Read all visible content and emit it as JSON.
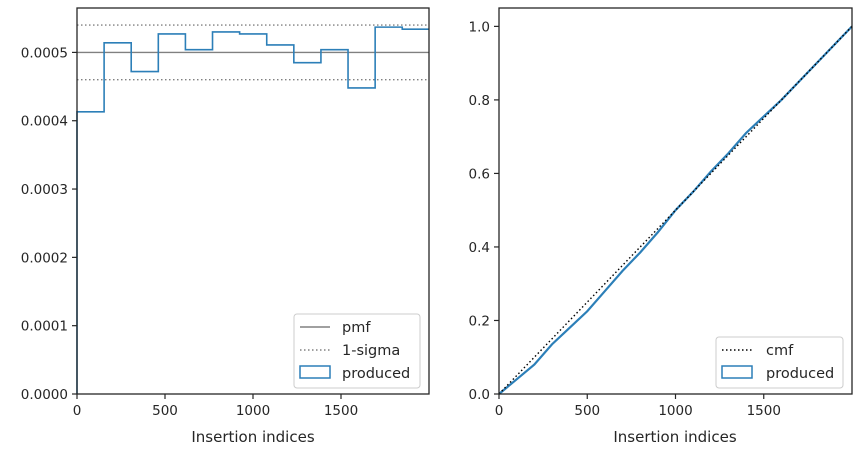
{
  "chart_data": [
    {
      "type": "step",
      "xlabel": "Insertion indices",
      "ylabel": "",
      "xlim": [
        0,
        2000
      ],
      "ylim": [
        0,
        0.000565
      ],
      "xticks": [
        0,
        500,
        1000,
        1500
      ],
      "xtick_labels": [
        "0",
        "500",
        "1000",
        "1500"
      ],
      "yticks": [
        0,
        0.0001,
        0.0002,
        0.0003,
        0.0004,
        0.0005
      ],
      "ytick_labels": [
        "0.0000",
        "0.0001",
        "0.0002",
        "0.0003",
        "0.0004",
        "0.0005"
      ],
      "grid": false,
      "legend": {
        "placement": "bottom-right",
        "entries": [
          "pmf",
          "1-sigma",
          "produced"
        ]
      },
      "pmf": 0.0005,
      "sigma_band": [
        0.00046,
        0.00054
      ],
      "series": [
        {
          "name": "produced",
          "bin_edges": [
            0,
            154,
            308,
            462,
            616,
            770,
            924,
            1078,
            1232,
            1386,
            1540,
            1694,
            1848,
            2000
          ],
          "values": [
            0.000413,
            0.000514,
            0.000472,
            0.000527,
            0.000504,
            0.00053,
            0.000527,
            0.000511,
            0.000485,
            0.000504,
            0.000448,
            0.000537,
            0.000534
          ]
        }
      ],
      "colors": {
        "produced": "#2c7fb8",
        "pmf": "#808080",
        "sigma": "#808080"
      }
    },
    {
      "type": "line",
      "xlabel": "Insertion indices",
      "ylabel": "",
      "xlim": [
        0,
        2000
      ],
      "ylim": [
        0,
        1.05
      ],
      "xticks": [
        0,
        500,
        1000,
        1500
      ],
      "xtick_labels": [
        "0",
        "500",
        "1000",
        "1500"
      ],
      "yticks": [
        0,
        0.2,
        0.4,
        0.6,
        0.8,
        1.0
      ],
      "ytick_labels": [
        "0.0",
        "0.2",
        "0.4",
        "0.6",
        "0.8",
        "1.0"
      ],
      "grid": false,
      "legend": {
        "placement": "bottom-right",
        "entries": [
          "cmf",
          "produced"
        ]
      },
      "series": [
        {
          "name": "cmf",
          "x": [
            0,
            2000
          ],
          "y": [
            0,
            1.0
          ]
        },
        {
          "name": "produced",
          "x": [
            0,
            100,
            200,
            300,
            400,
            500,
            600,
            700,
            800,
            900,
            1000,
            1100,
            1200,
            1300,
            1400,
            1500,
            1600,
            1700,
            1800,
            1900,
            2000
          ],
          "y": [
            0,
            0.04,
            0.08,
            0.135,
            0.18,
            0.225,
            0.28,
            0.335,
            0.385,
            0.44,
            0.5,
            0.55,
            0.605,
            0.655,
            0.71,
            0.755,
            0.8,
            0.85,
            0.9,
            0.95,
            1.0
          ]
        }
      ],
      "colors": {
        "produced": "#2c7fb8",
        "cmf": "#000000"
      }
    }
  ]
}
